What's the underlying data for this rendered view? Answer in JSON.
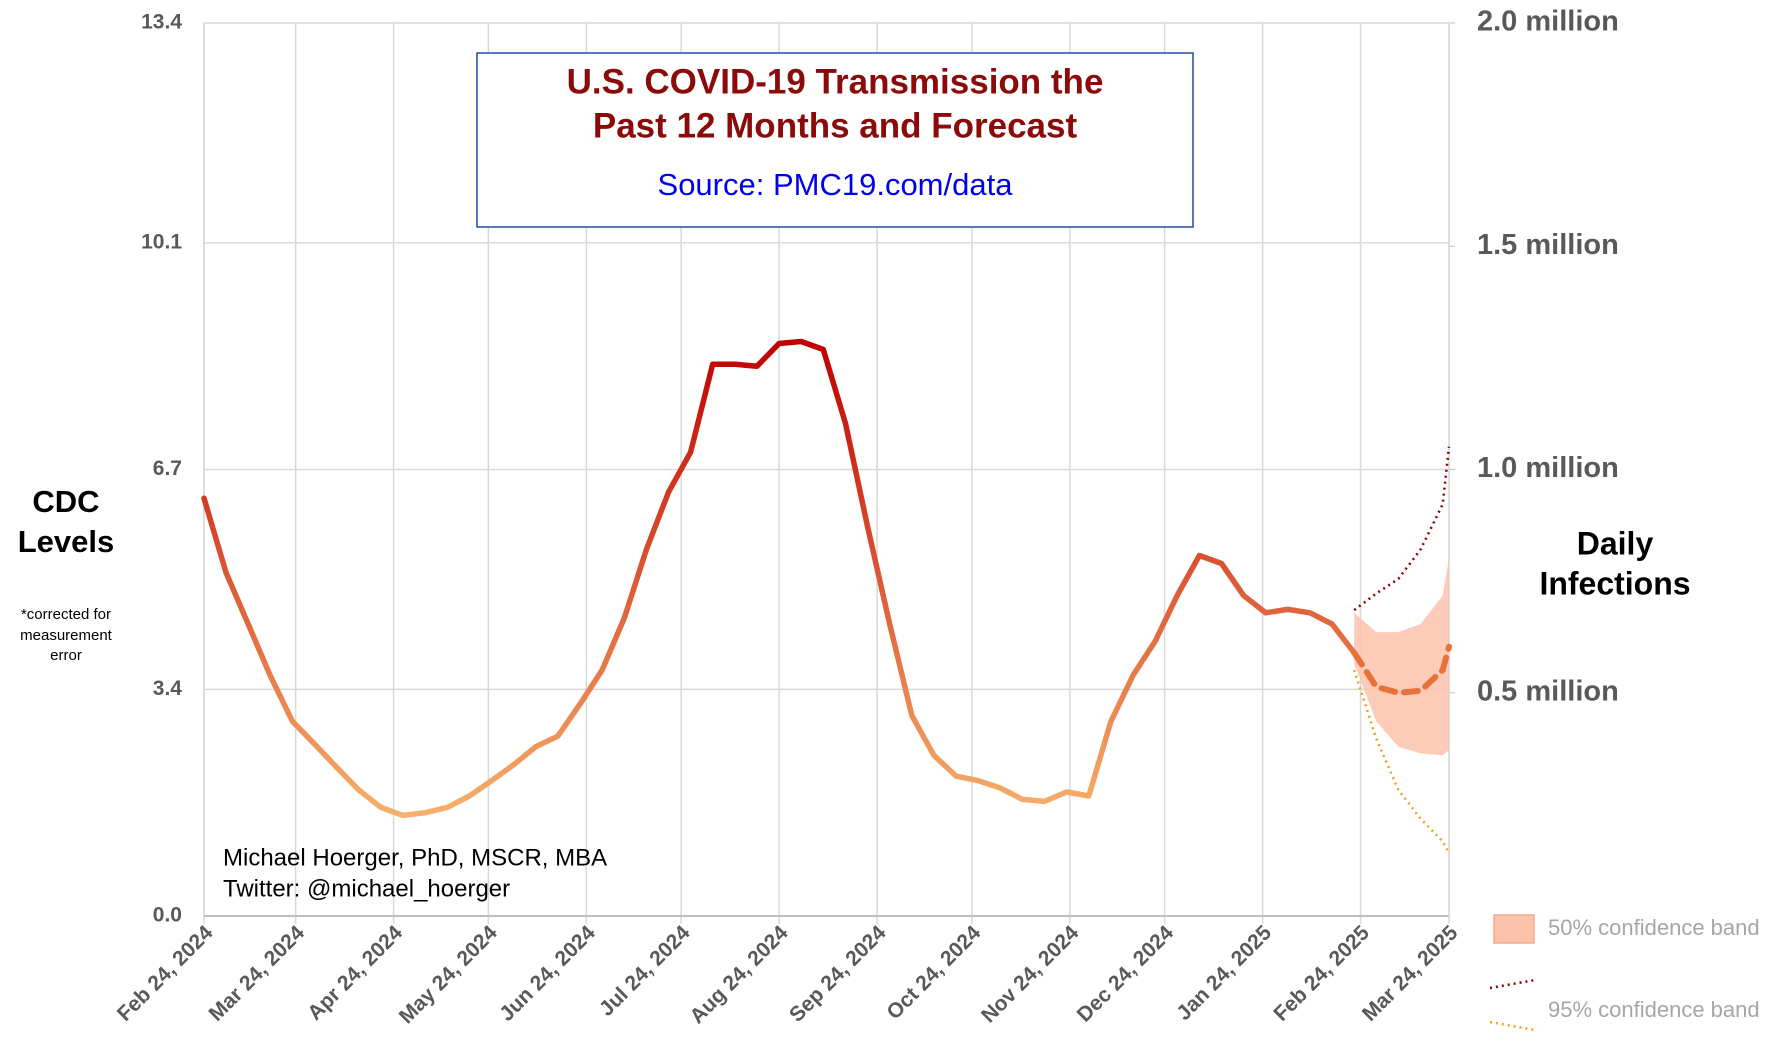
{
  "chart_data": {
    "type": "line",
    "title": [
      "U.S. COVID-19 Transmission the",
      "Past 12 Months and Forecast"
    ],
    "subtitle": "Source: PMC19.com/data",
    "y_label": [
      "CDC",
      "Levels"
    ],
    "y_note": [
      "*corrected for",
      "measurement",
      "error"
    ],
    "y2_label": [
      "Daily",
      "Infections"
    ],
    "annotation": [
      "Michael Hoerger, PhD, MSCR, MBA",
      "Twitter: @michael_hoerger"
    ],
    "xlim": [
      "2024-02-24",
      "2025-03-24"
    ],
    "xticks": [
      {
        "value": "2024-02-24",
        "label": "Feb 24, 2024"
      },
      {
        "value": "2024-03-24",
        "label": "Mar 24, 2024"
      },
      {
        "value": "2024-04-24",
        "label": "Apr 24, 2024"
      },
      {
        "value": "2024-05-24",
        "label": "May 24, 2024"
      },
      {
        "value": "2024-06-24",
        "label": "Jun 24, 2024"
      },
      {
        "value": "2024-07-24",
        "label": "Jul 24, 2024"
      },
      {
        "value": "2024-08-24",
        "label": "Aug 24, 2024"
      },
      {
        "value": "2024-09-24",
        "label": "Sep 24, 2024"
      },
      {
        "value": "2024-10-24",
        "label": "Oct 24, 2024"
      },
      {
        "value": "2024-11-24",
        "label": "Nov 24, 2024"
      },
      {
        "value": "2024-12-24",
        "label": "Dec 24, 2024"
      },
      {
        "value": "2025-01-24",
        "label": "Jan 24, 2025"
      },
      {
        "value": "2025-02-24",
        "label": "Feb 24, 2025"
      },
      {
        "value": "2025-03-24",
        "label": "Mar 24, 2025"
      }
    ],
    "ylim": [
      0,
      13.4
    ],
    "yticks": [
      {
        "value": 0,
        "label": "0.0"
      },
      3.4,
      6.7,
      10.1,
      13.4
    ],
    "y2lim": [
      0,
      2000000
    ],
    "y2ticks": [
      {
        "value": 500000,
        "label": "0.5 million"
      },
      {
        "value": 1000000,
        "label": "1.0 million"
      },
      {
        "value": 1500000,
        "label": "1.5 million"
      },
      {
        "value": 2000000,
        "label": "2.0 million"
      }
    ],
    "grid": true,
    "series": [
      {
        "color": "#c00000",
        "low_color": "#f7b06b",
        "x": [
          "2024-02-24",
          "2024-03-02",
          "2024-03-09",
          "2024-03-16",
          "2024-03-23",
          "2024-03-30",
          "2024-04-06",
          "2024-04-13",
          "2024-04-20",
          "2024-04-27",
          "2024-05-04",
          "2024-05-11",
          "2024-05-18",
          "2024-05-25",
          "2024-06-01",
          "2024-06-08",
          "2024-06-15",
          "2024-06-22",
          "2024-06-29",
          "2024-07-06",
          "2024-07-13",
          "2024-07-20",
          "2024-07-27",
          "2024-08-03",
          "2024-08-10",
          "2024-08-17",
          "2024-08-24",
          "2024-08-31",
          "2024-09-07",
          "2024-09-14",
          "2024-09-21",
          "2024-09-28",
          "2024-10-05",
          "2024-10-12",
          "2024-10-19",
          "2024-10-26",
          "2024-11-02",
          "2024-11-09",
          "2024-11-16",
          "2024-11-23",
          "2024-11-30",
          "2024-12-07",
          "2024-12-14",
          "2024-12-21",
          "2024-12-28",
          "2025-01-04",
          "2025-01-11",
          "2025-01-18",
          "2025-01-25",
          "2025-02-01",
          "2025-02-08",
          "2025-02-15",
          "2025-02-22"
        ],
        "values": [
          6.27,
          5.15,
          4.38,
          3.6,
          2.92,
          2.58,
          2.23,
          1.89,
          1.63,
          1.51,
          1.55,
          1.63,
          1.8,
          2.03,
          2.27,
          2.54,
          2.7,
          3.18,
          3.69,
          4.47,
          5.5,
          6.36,
          6.96,
          8.28,
          8.28,
          8.25,
          8.59,
          8.62,
          8.5,
          7.39,
          5.84,
          4.38,
          3.01,
          2.41,
          2.1,
          2.03,
          1.92,
          1.75,
          1.72,
          1.86,
          1.8,
          2.92,
          3.61,
          4.12,
          4.81,
          5.41,
          5.29,
          4.81,
          4.55,
          4.6,
          4.55,
          4.38,
          3.95
        ]
      },
      {
        "color": "#e8703a",
        "dashed": true,
        "x": [
          "2025-02-22",
          "2025-03-01",
          "2025-03-08",
          "2025-03-15",
          "2025-03-22",
          "2025-03-24"
        ],
        "values": [
          3.95,
          3.44,
          3.35,
          3.38,
          3.69,
          4.04
        ]
      }
    ],
    "bands": [
      {
        "name": "50% confidence band",
        "color": "#fbc3ac",
        "x": [
          "2025-02-22",
          "2025-03-01",
          "2025-03-08",
          "2025-03-15",
          "2025-03-22",
          "2025-03-24"
        ],
        "upper": [
          4.55,
          4.26,
          4.26,
          4.38,
          4.81,
          5.36
        ],
        "lower": [
          3.78,
          2.92,
          2.54,
          2.44,
          2.41,
          2.49
        ]
      },
      {
        "name": "95% confidence band",
        "color": "#8b0000",
        "lower_color": "#f0a020",
        "dotted": true,
        "x": [
          "2025-02-22",
          "2025-03-01",
          "2025-03-08",
          "2025-03-15",
          "2025-03-22",
          "2025-03-24"
        ],
        "upper": [
          4.59,
          4.84,
          5.06,
          5.5,
          6.18,
          7.04
        ],
        "lower": [
          3.69,
          2.66,
          1.89,
          1.46,
          1.12,
          0.94
        ]
      }
    ]
  }
}
